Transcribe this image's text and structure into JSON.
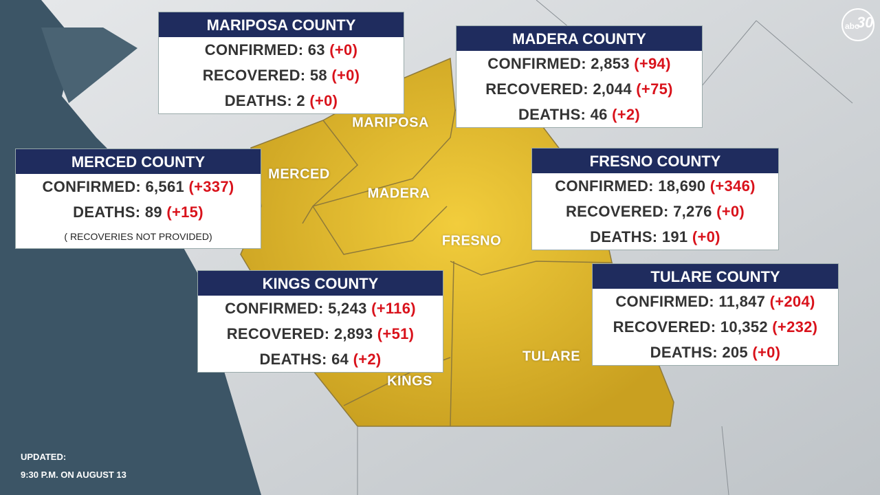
{
  "logo": {
    "network": "abc",
    "channel": "30"
  },
  "counties": [
    {
      "title": "MARIPOSA COUNTY",
      "rows": [
        {
          "label": "CONFIRMED:",
          "value": "63",
          "change": "(+0)"
        },
        {
          "label": "RECOVERED:",
          "value": "58",
          "change": "(+0)"
        },
        {
          "label": "DEATHS:",
          "value": "2",
          "change": "(+0)"
        }
      ]
    },
    {
      "title": "MADERA COUNTY",
      "rows": [
        {
          "label": "CONFIRMED:",
          "value": "2,853",
          "change": "(+94)"
        },
        {
          "label": "RECOVERED:",
          "value": "2,044",
          "change": "(+75)"
        },
        {
          "label": "DEATHS:",
          "value": "46",
          "change": "(+2)"
        }
      ]
    },
    {
      "title": "MERCED COUNTY",
      "rows": [
        {
          "label": "CONFIRMED:",
          "value": "6,561",
          "change": "(+337)"
        },
        {
          "label": "DEATHS:",
          "value": "89",
          "change": "(+15)"
        }
      ],
      "note": "( RECOVERIES NOT PROVIDED)"
    },
    {
      "title": "FRESNO COUNTY",
      "rows": [
        {
          "label": "CONFIRMED:",
          "value": "18,690",
          "change": "(+346)"
        },
        {
          "label": "RECOVERED:",
          "value": "7,276",
          "change": "(+0)"
        },
        {
          "label": "DEATHS:",
          "value": "191",
          "change": "(+0)"
        }
      ]
    },
    {
      "title": "KINGS COUNTY",
      "rows": [
        {
          "label": "CONFIRMED:",
          "value": "5,243",
          "change": "(+116)"
        },
        {
          "label": "RECOVERED:",
          "value": "2,893",
          "change": "(+51)"
        },
        {
          "label": "DEATHS:",
          "value": "64",
          "change": "(+2)"
        }
      ]
    },
    {
      "title": "TULARE COUNTY",
      "rows": [
        {
          "label": "CONFIRMED:",
          "value": "11,847",
          "change": "(+204)"
        },
        {
          "label": "RECOVERED:",
          "value": "10,352",
          "change": "(+232)"
        },
        {
          "label": "DEATHS:",
          "value": "205",
          "change": "(+0)"
        }
      ]
    }
  ],
  "map_labels": [
    "MARIPOSA",
    "MERCED",
    "MADERA",
    "FRESNO",
    "TULARE",
    "KINGS"
  ],
  "updated": {
    "line1": "UPDATED:",
    "line2": "9:30 P.M. ON AUGUST 13"
  }
}
